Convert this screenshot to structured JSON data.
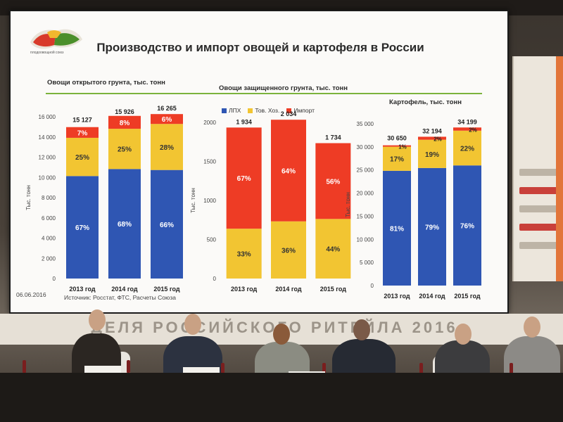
{
  "slide": {
    "title": "Производство и импорт овощей и картофеля в России",
    "date": "06.06.2016",
    "source": "Источник:  Росстат, ФТС, Расчеты Союза",
    "logo_caption": "плодоовощной союз"
  },
  "banner": {
    "text": "ДЕЛЯ  РОССИЙСКОГО  РИТЕЙЛА  2016"
  },
  "legend": [
    {
      "label": "ЛПХ",
      "color": "#2f56b3"
    },
    {
      "label": "Тов. Хоз.",
      "color": "#f2c532"
    },
    {
      "label": "Импорт",
      "color": "#ee3c25"
    }
  ],
  "colors": {
    "lph": "#2f56b3",
    "tov": "#f2c532",
    "import": "#ee3c25",
    "accent": "#7bb33c"
  },
  "chart_data": [
    {
      "type": "bar",
      "stacked": true,
      "title": "Овощи открытого грунта, тыс. тонн",
      "ylabel": "Тыс. тонн",
      "categories": [
        "2013 год",
        "2014 год",
        "2015 год"
      ],
      "ylim": [
        0,
        16000
      ],
      "yticks": [
        "0",
        "2 000",
        "4 000",
        "6 000",
        "8 000",
        "10 000",
        "12 000",
        "14 000",
        "16 000"
      ],
      "totals": [
        "15 127",
        "15 926",
        "16 265"
      ],
      "total_values": [
        15127,
        15926,
        16265
      ],
      "series": [
        {
          "name": "ЛПХ",
          "percents": [
            67,
            68,
            66
          ],
          "labels": [
            "67%",
            "68%",
            "66%"
          ]
        },
        {
          "name": "Тов. Хоз.",
          "percents": [
            25,
            25,
            28
          ],
          "labels": [
            "25%",
            "25%",
            "28%"
          ]
        },
        {
          "name": "Импорт",
          "percents": [
            7,
            8,
            6
          ],
          "labels": [
            "7%",
            "8%",
            "6%"
          ]
        }
      ]
    },
    {
      "type": "bar",
      "stacked": true,
      "title": "Овощи защищенного грунта, тыс. тонн",
      "ylabel": "Тыс. тонн",
      "categories": [
        "2013 год",
        "2014 год",
        "2015 год"
      ],
      "ylim": [
        0,
        2000
      ],
      "yticks": [
        "0",
        "500",
        "1000",
        "1500",
        "2000"
      ],
      "totals": [
        "1 934",
        "2 034",
        "1 734"
      ],
      "total_values": [
        1934,
        2034,
        1734
      ],
      "series": [
        {
          "name": "ЛПХ",
          "percents": [
            0,
            0,
            0
          ],
          "labels": [
            "",
            "",
            ""
          ]
        },
        {
          "name": "Тов. Хоз.",
          "percents": [
            33,
            36,
            44
          ],
          "labels": [
            "33%",
            "36%",
            "44%"
          ]
        },
        {
          "name": "Импорт",
          "percents": [
            67,
            64,
            56
          ],
          "labels": [
            "67%",
            "64%",
            "56%"
          ]
        }
      ]
    },
    {
      "type": "bar",
      "stacked": true,
      "title": "Картофель, тыс. тонн",
      "ylabel": "Тыс. тонн",
      "categories": [
        "2013 год",
        "2014 год",
        "2015 год"
      ],
      "ylim": [
        0,
        35000
      ],
      "yticks": [
        "0",
        "5 000",
        "10 000",
        "15 000",
        "20 000",
        "25 000",
        "30 000",
        "35 000"
      ],
      "totals": [
        "30 650",
        "32 194",
        "34 199"
      ],
      "total_values": [
        30650,
        32194,
        34199
      ],
      "series": [
        {
          "name": "ЛПХ",
          "percents": [
            81,
            79,
            76
          ],
          "labels": [
            "81%",
            "79%",
            "76%"
          ]
        },
        {
          "name": "Тов. Хоз.",
          "percents": [
            17,
            19,
            22
          ],
          "labels": [
            "17%",
            "19%",
            "22%"
          ]
        },
        {
          "name": "Импорт",
          "percents": [
            1,
            2,
            2
          ],
          "labels": [
            "1%",
            "2%",
            "2%"
          ]
        }
      ]
    }
  ]
}
